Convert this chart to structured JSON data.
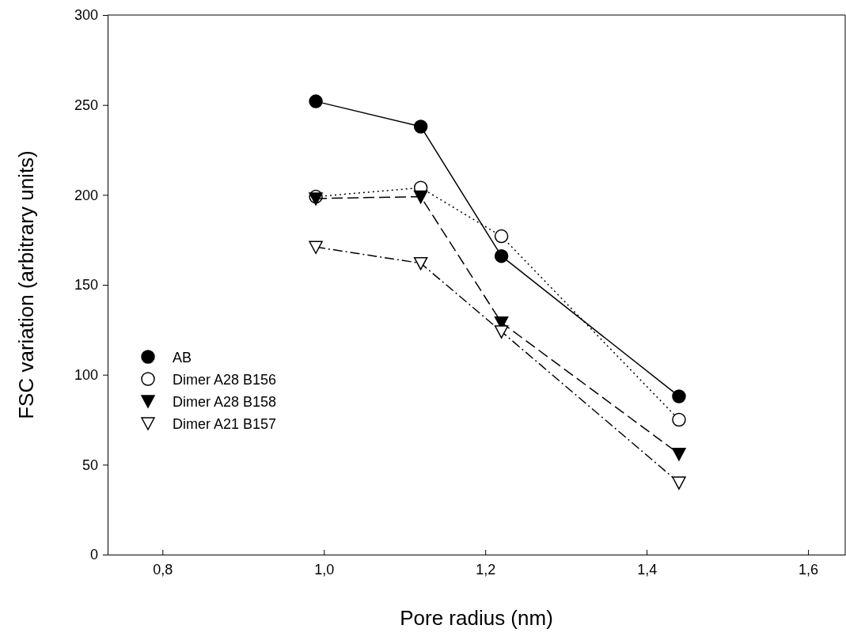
{
  "chart_data": {
    "type": "line",
    "xlabel": "Pore radius (nm)",
    "ylabel": "FSC variation (arbitrary units)",
    "xlim": [
      0.732,
      1.646
    ],
    "ylim": [
      0,
      300
    ],
    "xticks": [
      {
        "value": 0.8,
        "label": "0,8"
      },
      {
        "value": 1.0,
        "label": "1,0"
      },
      {
        "value": 1.2,
        "label": "1,2"
      },
      {
        "value": 1.4,
        "label": "1,4"
      },
      {
        "value": 1.6,
        "label": "1,6"
      }
    ],
    "yticks": [
      0,
      50,
      100,
      150,
      200,
      250,
      300
    ],
    "x": [
      0.99,
      1.12,
      1.22,
      1.44
    ],
    "grid": false,
    "legend": "bottom left",
    "series": [
      {
        "name": "AB",
        "color": "#000000",
        "values": [
          252,
          238,
          166,
          88
        ],
        "marker": "circle",
        "line_style": "solid"
      },
      {
        "name": "Dimer A28 B156",
        "color": "#000000",
        "values": [
          199,
          204,
          177,
          75
        ],
        "marker": "circle-open",
        "line_style": "dotted"
      },
      {
        "name": "Dimer A28 B158",
        "color": "#000000",
        "values": [
          198,
          199,
          129,
          56
        ],
        "marker": "triangle",
        "line_style": "dashed"
      },
      {
        "name": "Dimer A21 B157",
        "color": "#000000",
        "values": [
          171,
          162,
          124,
          40
        ],
        "marker": "triangle-open",
        "line_style": "dashdot"
      }
    ]
  }
}
